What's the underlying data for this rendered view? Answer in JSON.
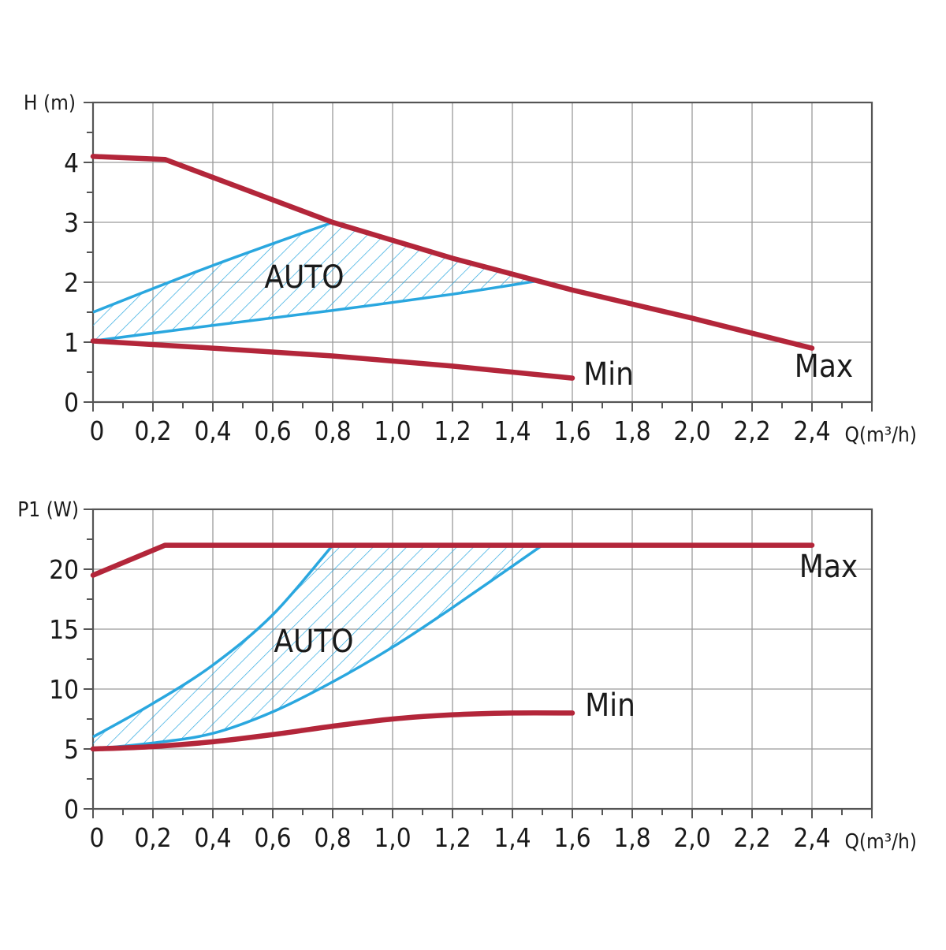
{
  "chart_data": [
    {
      "type": "line",
      "ylabel": "H (m)",
      "xlabel": "Q(m³/h)",
      "xlim": [
        0,
        2.6
      ],
      "ylim": [
        0,
        5
      ],
      "x_ticks": [
        0,
        0.2,
        0.4,
        0.6,
        0.8,
        1.0,
        1.2,
        1.4,
        1.6,
        1.8,
        2.0,
        2.2,
        2.4
      ],
      "x_tick_labels": [
        "0",
        "0,2",
        "0,4",
        "0,6",
        "0,8",
        "1,0",
        "1,2",
        "1,4",
        "1,6",
        "1,8",
        "2,0",
        "2,2",
        "2,4"
      ],
      "y_ticks": [
        0,
        1,
        2,
        3,
        4
      ],
      "y_tick_labels": [
        "0",
        "1",
        "2",
        "3",
        "4"
      ],
      "grid": true,
      "colors": {
        "max_min": "#b3263a",
        "auto": "#2aa7df"
      },
      "series": [
        {
          "name": "Max",
          "x": [
            0,
            0.24,
            0.8,
            1.2,
            1.6,
            2.0,
            2.4
          ],
          "y": [
            4.1,
            4.05,
            3.0,
            2.4,
            1.87,
            1.4,
            0.9
          ]
        },
        {
          "name": "Min",
          "x": [
            0,
            0.4,
            0.8,
            1.2,
            1.6
          ],
          "y": [
            1.02,
            0.9,
            0.77,
            0.6,
            0.4
          ]
        }
      ],
      "auto_region": {
        "name": "AUTO",
        "upper": {
          "x": [
            0,
            0.4,
            0.8
          ],
          "y": [
            1.5,
            2.28,
            3.0
          ]
        },
        "lower": {
          "x": [
            0,
            0.4,
            0.8,
            1.2,
            1.48
          ],
          "y": [
            1.02,
            1.28,
            1.53,
            1.8,
            2.02
          ]
        }
      }
    },
    {
      "type": "line",
      "ylabel": "P1 (W)",
      "xlabel": "Q(m³/h)",
      "xlim": [
        0,
        2.6
      ],
      "ylim": [
        0,
        25
      ],
      "x_ticks": [
        0,
        0.2,
        0.4,
        0.6,
        0.8,
        1.0,
        1.2,
        1.4,
        1.6,
        1.8,
        2.0,
        2.2,
        2.4
      ],
      "x_tick_labels": [
        "0",
        "0,2",
        "0,4",
        "0,6",
        "0,8",
        "1,0",
        "1,2",
        "1,4",
        "1,6",
        "1,8",
        "2,0",
        "2,2",
        "2,4"
      ],
      "y_ticks": [
        0,
        5,
        10,
        15,
        20
      ],
      "y_tick_labels": [
        "0",
        "5",
        "10",
        "15",
        "20"
      ],
      "grid": true,
      "colors": {
        "max_min": "#b3263a",
        "auto": "#2aa7df"
      },
      "series": [
        {
          "name": "Max",
          "x": [
            0,
            0.24,
            0.8,
            1.5,
            2.4
          ],
          "y": [
            19.5,
            22,
            22,
            22,
            22
          ]
        },
        {
          "name": "Min",
          "x": [
            0,
            0.2,
            0.4,
            0.6,
            0.8,
            1.0,
            1.2,
            1.4,
            1.6
          ],
          "y": [
            5,
            5.2,
            5.6,
            6.2,
            6.9,
            7.5,
            7.85,
            8.0,
            8.0
          ]
        }
      ],
      "auto_region": {
        "name": "AUTO",
        "upper": {
          "x": [
            0,
            0.2,
            0.4,
            0.6,
            0.8
          ],
          "y": [
            6,
            8.8,
            12.0,
            16.2,
            22
          ]
        },
        "lower": {
          "x": [
            0,
            0.2,
            0.4,
            0.6,
            0.8,
            1.0,
            1.2,
            1.5
          ],
          "y": [
            5,
            5.5,
            6.3,
            8.1,
            10.6,
            13.5,
            16.8,
            22
          ]
        }
      }
    }
  ]
}
